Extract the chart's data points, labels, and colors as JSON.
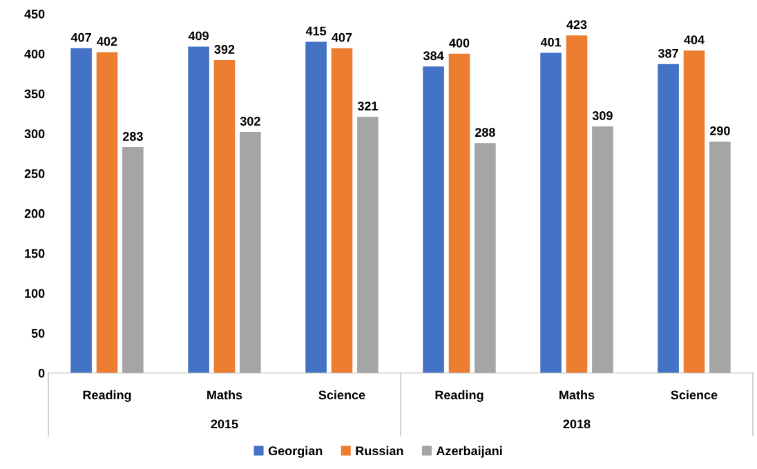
{
  "chart_data": {
    "type": "bar",
    "categories": [
      "Reading",
      "Maths",
      "Science",
      "Reading",
      "Maths",
      "Science"
    ],
    "series": [
      {
        "name": "Georgian",
        "color": "#4472c4",
        "values": [
          407,
          409,
          415,
          384,
          401,
          387
        ]
      },
      {
        "name": "Russian",
        "color": "#ed7d31",
        "values": [
          402,
          392,
          407,
          400,
          423,
          404
        ]
      },
      {
        "name": "Azerbaijani",
        "color": "#a5a5a5",
        "values": [
          283,
          302,
          321,
          288,
          309,
          290
        ]
      }
    ],
    "annotations": [
      "2015",
      "2018"
    ],
    "ylim": [
      0,
      450
    ],
    "yticks": [
      0,
      50,
      100,
      150,
      200,
      250,
      300,
      350,
      400,
      450
    ],
    "data_labels": true,
    "grid": false,
    "legend": "bottom"
  }
}
